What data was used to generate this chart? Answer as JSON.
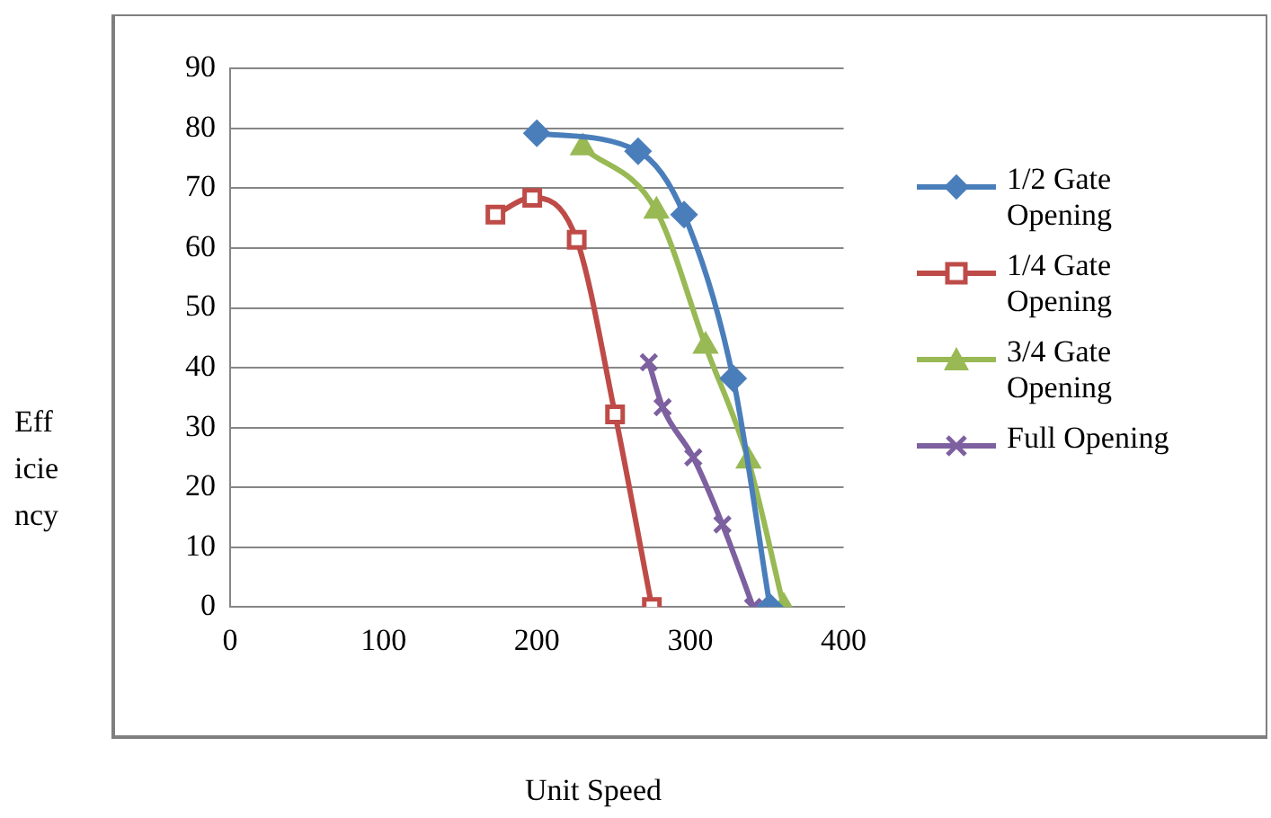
{
  "chart_data": {
    "type": "line",
    "xlabel": "Unit Speed",
    "ylabel": "Efficiency",
    "xlim": [
      0,
      400
    ],
    "xticks": [
      0,
      100,
      200,
      300,
      400
    ],
    "ylim": [
      0,
      90
    ],
    "yticks": [
      0,
      10,
      20,
      30,
      40,
      50,
      60,
      70,
      80,
      90
    ],
    "grid": "y",
    "legend": "right",
    "series": [
      {
        "name": "1/2 Gate Opening",
        "color": "#4a7ebb",
        "marker": "diamond",
        "x": [
          200,
          266,
          296,
          328,
          352
        ],
        "values": [
          79.2,
          76.2,
          65.6,
          38.2,
          0
        ]
      },
      {
        "name": "1/4 Gate Opening",
        "color": "#be4b48",
        "marker": "square",
        "x": [
          173,
          197,
          226,
          251,
          275
        ],
        "values": [
          65.6,
          68.4,
          61.4,
          32.2,
          0
        ]
      },
      {
        "name": "3/4 Gate Opening",
        "color": "#98b954",
        "marker": "triangle",
        "x": [
          230,
          278,
          310,
          338,
          361
        ],
        "values": [
          76.8,
          66.2,
          43.6,
          24.4,
          0
        ]
      },
      {
        "name": "Full Opening",
        "color": "#7d60a0",
        "marker": "cross",
        "x": [
          273,
          282,
          302,
          321,
          341
        ],
        "values": [
          40.9,
          33.4,
          25,
          13.8,
          0
        ]
      }
    ]
  }
}
